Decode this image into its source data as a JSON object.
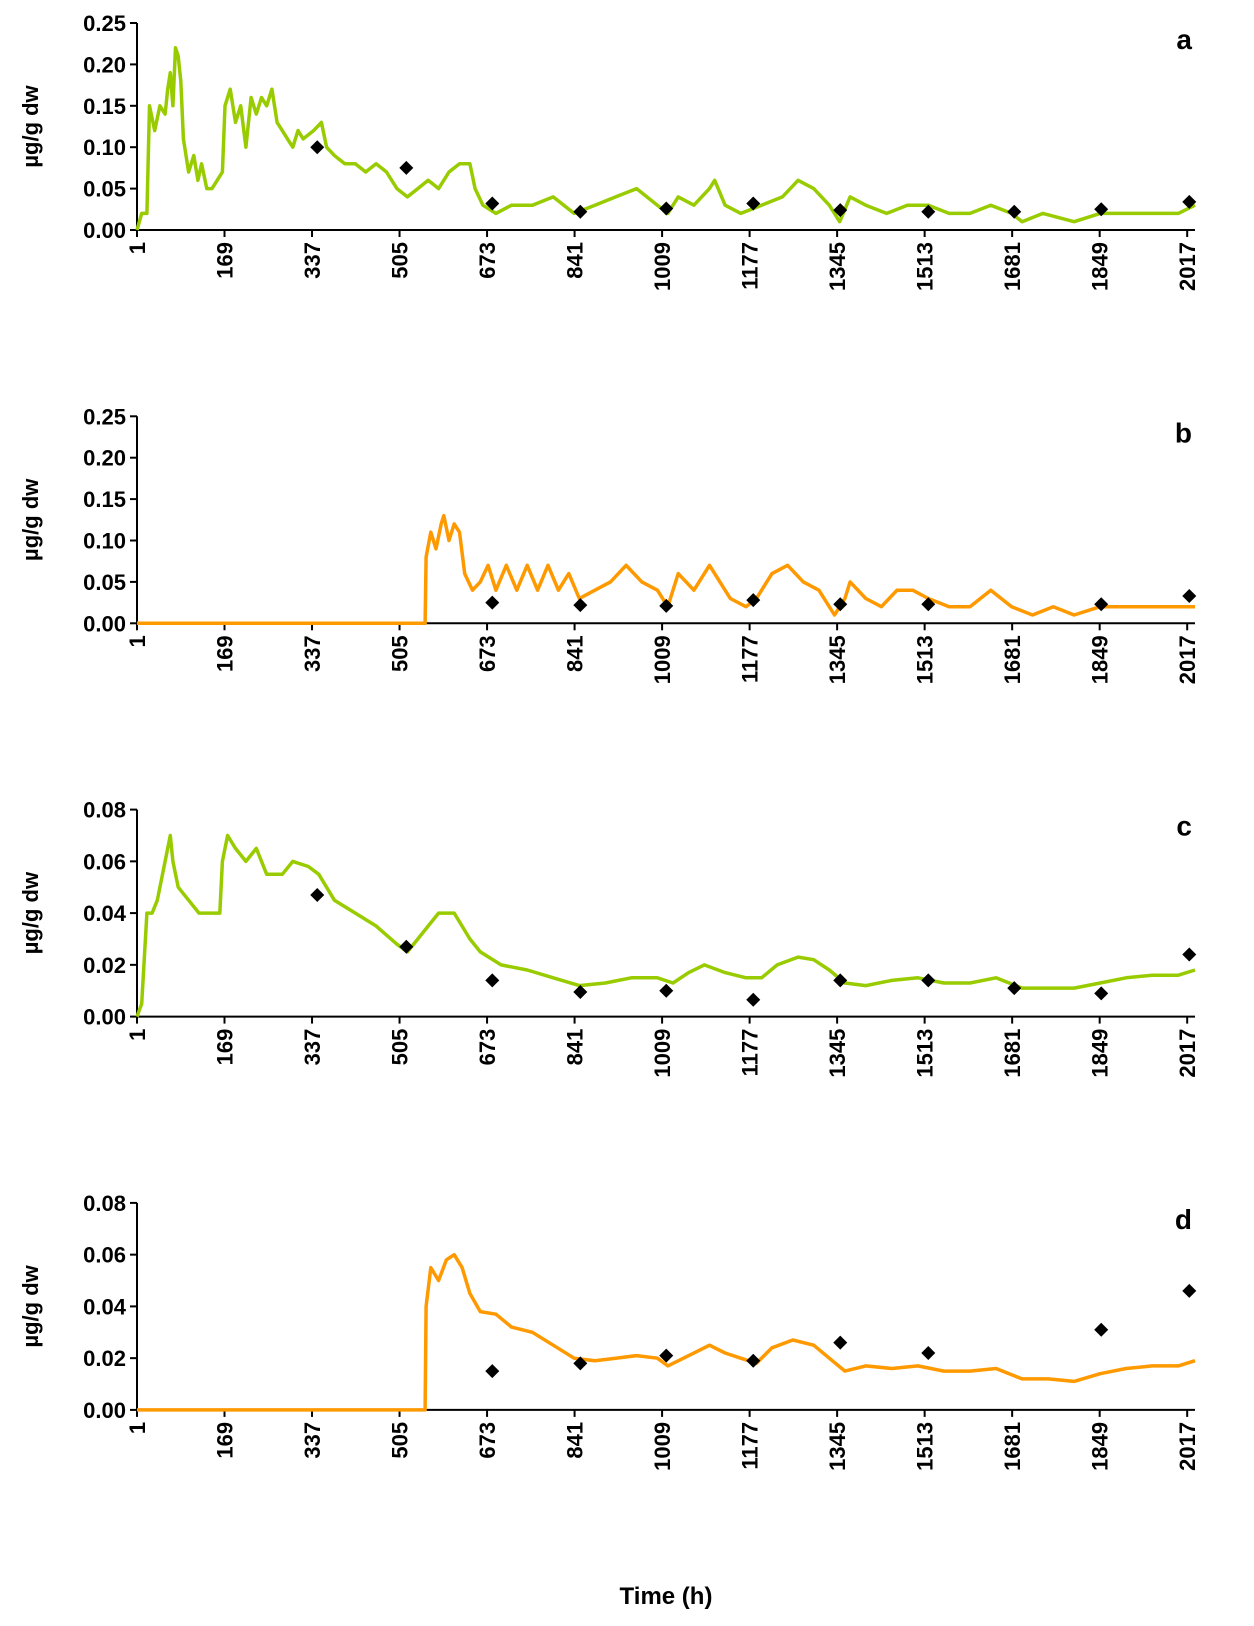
{
  "chart_data": [
    {
      "type": "line",
      "panel_label": "a",
      "ylabel": "µg/g dw",
      "xlim": [
        1,
        2032
      ],
      "xticks": [
        1,
        169,
        337,
        505,
        673,
        841,
        1009,
        1177,
        1345,
        1513,
        1681,
        1849,
        2017
      ],
      "ylim": [
        0,
        0.25
      ],
      "yticks": [
        {
          "value": 0,
          "label": "0.00"
        },
        {
          "value": 0.05,
          "label": "0.05"
        },
        {
          "value": 0.1,
          "label": "0.10"
        },
        {
          "value": 0.15,
          "label": "0.15"
        },
        {
          "value": 0.2,
          "label": "0.20"
        },
        {
          "value": 0.25,
          "label": "0.25"
        }
      ],
      "series": [
        {
          "type": "line",
          "color": "#99cc00",
          "x": [
            1,
            10,
            20,
            25,
            35,
            45,
            55,
            60,
            65,
            70,
            75,
            80,
            85,
            90,
            100,
            105,
            110,
            118,
            125,
            135,
            145,
            155,
            165,
            170,
            180,
            190,
            200,
            210,
            220,
            230,
            240,
            250,
            260,
            270,
            280,
            290,
            300,
            310,
            320,
            340,
            355,
            365,
            380,
            400,
            420,
            440,
            460,
            480,
            500,
            520,
            540,
            560,
            580,
            600,
            620,
            640,
            650,
            665,
            690,
            720,
            760,
            800,
            840,
            880,
            920,
            960,
            1000,
            1020,
            1040,
            1070,
            1100,
            1110,
            1130,
            1160,
            1200,
            1240,
            1270,
            1300,
            1330,
            1350,
            1370,
            1400,
            1440,
            1480,
            1520,
            1560,
            1600,
            1640,
            1680,
            1700,
            1740,
            1800,
            1850,
            1900,
            1960,
            2000,
            2032
          ],
          "values": [
            0,
            0.02,
            0.02,
            0.15,
            0.12,
            0.15,
            0.14,
            0.17,
            0.19,
            0.15,
            0.22,
            0.21,
            0.18,
            0.11,
            0.07,
            0.08,
            0.09,
            0.06,
            0.08,
            0.05,
            0.05,
            0.06,
            0.07,
            0.15,
            0.17,
            0.13,
            0.15,
            0.1,
            0.16,
            0.14,
            0.16,
            0.15,
            0.17,
            0.13,
            0.12,
            0.11,
            0.1,
            0.12,
            0.11,
            0.12,
            0.13,
            0.1,
            0.09,
            0.08,
            0.08,
            0.07,
            0.08,
            0.07,
            0.05,
            0.04,
            0.05,
            0.06,
            0.05,
            0.07,
            0.08,
            0.08,
            0.05,
            0.03,
            0.02,
            0.03,
            0.03,
            0.04,
            0.02,
            0.03,
            0.04,
            0.05,
            0.03,
            0.02,
            0.04,
            0.03,
            0.05,
            0.06,
            0.03,
            0.02,
            0.03,
            0.04,
            0.06,
            0.05,
            0.03,
            0.01,
            0.04,
            0.03,
            0.02,
            0.03,
            0.03,
            0.02,
            0.02,
            0.03,
            0.02,
            0.01,
            0.02,
            0.01,
            0.02,
            0.02,
            0.02,
            0.02,
            0.03
          ]
        },
        {
          "type": "scatter",
          "color": "#000000",
          "x": [
            347,
            518,
            683,
            852,
            1017,
            1184,
            1351,
            1520,
            1685,
            1852,
            2021
          ],
          "values": [
            0.1,
            0.075,
            0.032,
            0.022,
            0.026,
            0.032,
            0.024,
            0.022,
            0.022,
            0.025,
            0.034
          ]
        }
      ]
    },
    {
      "type": "line",
      "panel_label": "b",
      "ylabel": "µg/g dw",
      "xlim": [
        1,
        2032
      ],
      "xticks": [
        1,
        169,
        337,
        505,
        673,
        841,
        1009,
        1177,
        1345,
        1513,
        1681,
        1849,
        2017
      ],
      "ylim": [
        0,
        0.25
      ],
      "yticks": [
        {
          "value": 0,
          "label": "0.00"
        },
        {
          "value": 0.05,
          "label": "0.05"
        },
        {
          "value": 0.1,
          "label": "0.10"
        },
        {
          "value": 0.15,
          "label": "0.15"
        },
        {
          "value": 0.2,
          "label": "0.20"
        },
        {
          "value": 0.25,
          "label": "0.25"
        }
      ],
      "series": [
        {
          "type": "line",
          "color": "#ff9900",
          "x": [
            1,
            554,
            556,
            565,
            575,
            585,
            590,
            600,
            610,
            620,
            630,
            645,
            660,
            675,
            690,
            710,
            730,
            750,
            770,
            790,
            810,
            830,
            850,
            880,
            910,
            940,
            970,
            1000,
            1020,
            1040,
            1070,
            1100,
            1120,
            1140,
            1170,
            1190,
            1220,
            1250,
            1280,
            1310,
            1340,
            1360,
            1370,
            1400,
            1430,
            1460,
            1490,
            1520,
            1560,
            1600,
            1640,
            1680,
            1720,
            1760,
            1800,
            1850,
            1900,
            1960,
            2032
          ],
          "values": [
            0,
            0,
            0.08,
            0.11,
            0.09,
            0.12,
            0.13,
            0.1,
            0.12,
            0.11,
            0.06,
            0.04,
            0.05,
            0.07,
            0.04,
            0.07,
            0.04,
            0.07,
            0.04,
            0.07,
            0.04,
            0.06,
            0.03,
            0.04,
            0.05,
            0.07,
            0.05,
            0.04,
            0.02,
            0.06,
            0.04,
            0.07,
            0.05,
            0.03,
            0.02,
            0.03,
            0.06,
            0.07,
            0.05,
            0.04,
            0.01,
            0.03,
            0.05,
            0.03,
            0.02,
            0.04,
            0.04,
            0.03,
            0.02,
            0.02,
            0.04,
            0.02,
            0.01,
            0.02,
            0.01,
            0.02,
            0.02,
            0.02,
            0.02
          ]
        },
        {
          "type": "scatter",
          "color": "#000000",
          "x": [
            683,
            852,
            1017,
            1184,
            1351,
            1520,
            1852,
            2021
          ],
          "values": [
            0.025,
            0.022,
            0.021,
            0.028,
            0.023,
            0.023,
            0.023,
            0.033
          ]
        }
      ]
    },
    {
      "type": "line",
      "panel_label": "c",
      "ylabel": "µg/g dw",
      "xlim": [
        1,
        2032
      ],
      "xticks": [
        1,
        169,
        337,
        505,
        673,
        841,
        1009,
        1177,
        1345,
        1513,
        1681,
        1849,
        2017
      ],
      "ylim": [
        0,
        0.08
      ],
      "yticks": [
        {
          "value": 0,
          "label": "0.00"
        },
        {
          "value": 0.02,
          "label": "0.02"
        },
        {
          "value": 0.04,
          "label": "0.04"
        },
        {
          "value": 0.06,
          "label": "0.06"
        },
        {
          "value": 0.08,
          "label": "0.08"
        }
      ],
      "series": [
        {
          "type": "line",
          "color": "#99cc00",
          "x": [
            1,
            10,
            20,
            30,
            40,
            50,
            60,
            65,
            70,
            80,
            100,
            120,
            140,
            160,
            165,
            175,
            190,
            210,
            230,
            250,
            280,
            300,
            330,
            350,
            380,
            420,
            460,
            500,
            520,
            540,
            560,
            580,
            610,
            640,
            660,
            700,
            750,
            800,
            850,
            900,
            950,
            1000,
            1030,
            1060,
            1090,
            1130,
            1170,
            1200,
            1230,
            1270,
            1300,
            1330,
            1360,
            1400,
            1450,
            1500,
            1550,
            1600,
            1650,
            1700,
            1750,
            1800,
            1850,
            1900,
            1950,
            2000,
            2032
          ],
          "values": [
            0,
            0.005,
            0.04,
            0.04,
            0.045,
            0.055,
            0.065,
            0.07,
            0.06,
            0.05,
            0.045,
            0.04,
            0.04,
            0.04,
            0.06,
            0.07,
            0.065,
            0.06,
            0.065,
            0.055,
            0.055,
            0.06,
            0.058,
            0.055,
            0.045,
            0.04,
            0.035,
            0.028,
            0.025,
            0.03,
            0.035,
            0.04,
            0.04,
            0.03,
            0.025,
            0.02,
            0.018,
            0.015,
            0.012,
            0.013,
            0.015,
            0.015,
            0.013,
            0.017,
            0.02,
            0.017,
            0.015,
            0.015,
            0.02,
            0.023,
            0.022,
            0.018,
            0.013,
            0.012,
            0.014,
            0.015,
            0.013,
            0.013,
            0.015,
            0.011,
            0.011,
            0.011,
            0.013,
            0.015,
            0.016,
            0.016,
            0.018
          ]
        },
        {
          "type": "scatter",
          "color": "#000000",
          "x": [
            347,
            518,
            683,
            852,
            1017,
            1184,
            1351,
            1520,
            1685,
            1852,
            2021
          ],
          "values": [
            0.047,
            0.027,
            0.014,
            0.0095,
            0.01,
            0.0065,
            0.014,
            0.014,
            0.011,
            0.009,
            0.024
          ]
        }
      ]
    },
    {
      "type": "line",
      "panel_label": "d",
      "ylabel": "µg/g dw",
      "xlabel": "Time (h)",
      "xlim": [
        1,
        2032
      ],
      "xticks": [
        1,
        169,
        337,
        505,
        673,
        841,
        1009,
        1177,
        1345,
        1513,
        1681,
        1849,
        2017
      ],
      "ylim": [
        0,
        0.08
      ],
      "yticks": [
        {
          "value": 0,
          "label": "0.00"
        },
        {
          "value": 0.02,
          "label": "0.02"
        },
        {
          "value": 0.04,
          "label": "0.04"
        },
        {
          "value": 0.06,
          "label": "0.06"
        },
        {
          "value": 0.08,
          "label": "0.08"
        }
      ],
      "series": [
        {
          "type": "line",
          "color": "#ff9900",
          "x": [
            1,
            554,
            556,
            565,
            580,
            595,
            610,
            625,
            640,
            660,
            690,
            720,
            760,
            800,
            840,
            880,
            920,
            960,
            1000,
            1020,
            1050,
            1080,
            1100,
            1130,
            1160,
            1190,
            1220,
            1260,
            1300,
            1330,
            1360,
            1400,
            1450,
            1500,
            1550,
            1600,
            1650,
            1700,
            1750,
            1800,
            1850,
            1900,
            1950,
            2000,
            2032
          ],
          "values": [
            0,
            0,
            0.04,
            0.055,
            0.05,
            0.058,
            0.06,
            0.055,
            0.045,
            0.038,
            0.037,
            0.032,
            0.03,
            0.025,
            0.02,
            0.019,
            0.02,
            0.021,
            0.02,
            0.017,
            0.02,
            0.023,
            0.025,
            0.022,
            0.02,
            0.018,
            0.024,
            0.027,
            0.025,
            0.02,
            0.015,
            0.017,
            0.016,
            0.017,
            0.015,
            0.015,
            0.016,
            0.012,
            0.012,
            0.011,
            0.014,
            0.016,
            0.017,
            0.017,
            0.019
          ]
        },
        {
          "type": "scatter",
          "color": "#000000",
          "x": [
            683,
            852,
            1017,
            1184,
            1351,
            1520,
            1852,
            2021
          ],
          "values": [
            0.015,
            0.018,
            0.021,
            0.019,
            0.026,
            0.022,
            0.031,
            0.046
          ]
        }
      ]
    }
  ]
}
